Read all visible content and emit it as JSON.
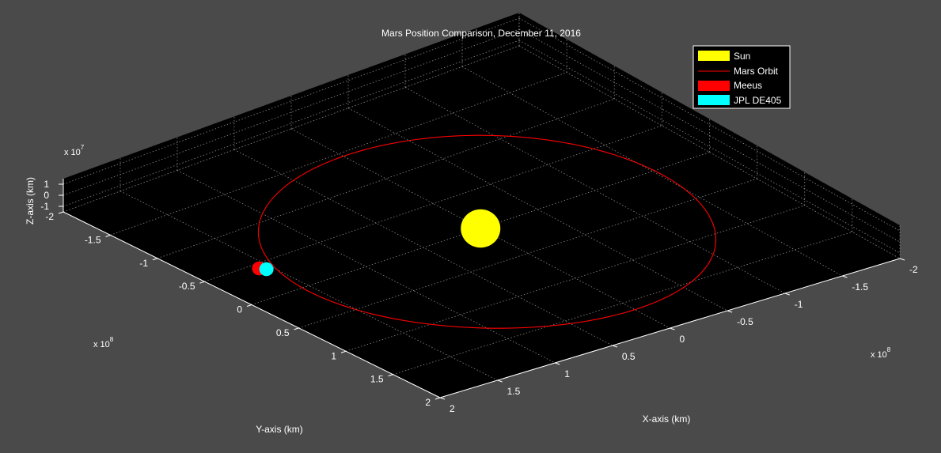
{
  "chart_data": {
    "type": "scatter",
    "projection": "3d",
    "title": "Mars Position Comparison, December 11, 2016",
    "xlabel": "X-axis (km)",
    "ylabel": "Y-axis (km)",
    "zlabel": "Z-axis (km)",
    "x_multiplier": "x 10",
    "x_exponent": "8",
    "y_multiplier": "x 10",
    "y_exponent": "8",
    "z_multiplier": "x 10",
    "z_exponent": "7",
    "xlim": [
      -2,
      2
    ],
    "ylim": [
      -2,
      2
    ],
    "zlim": [
      -1.5,
      1.5
    ],
    "x_ticks": [
      "-2",
      "-1.5",
      "-1",
      "-0.5",
      "0",
      "0.5",
      "1",
      "1.5",
      "2"
    ],
    "y_ticks": [
      "-2",
      "-1.5",
      "-1",
      "-0.5",
      "0",
      "0.5",
      "1",
      "1.5",
      "2"
    ],
    "z_ticks": [
      "1",
      "0",
      "-1"
    ],
    "grid": true,
    "background_color": "#4a4a4a",
    "axes_color": "#000000",
    "legend_position": "top-right",
    "legend": [
      {
        "label": "Sun",
        "color": "#ffff00",
        "marker": "patch"
      },
      {
        "label": "Mars Orbit",
        "color": "#ff0000",
        "marker": "line"
      },
      {
        "label": "Meeus",
        "color": "#ff0000",
        "marker": "patch"
      },
      {
        "label": "JPL DE405",
        "color": "#00ffff",
        "marker": "patch"
      }
    ],
    "series": [
      {
        "name": "Sun",
        "color": "#ffff00",
        "x": 0,
        "y": 0,
        "z": 0
      },
      {
        "name": "Mars Orbit",
        "color": "#ff0000",
        "type": "line",
        "center_x": 0.09,
        "center_y": -0.02,
        "radius": 1.54
      },
      {
        "name": "Meeus",
        "color": "#ff0000",
        "x": -0.43,
        "y": -1.58,
        "z": 0
      },
      {
        "name": "JPL DE405",
        "color": "#00ffff",
        "x": -0.39,
        "y": -1.55,
        "z": 0
      }
    ]
  }
}
